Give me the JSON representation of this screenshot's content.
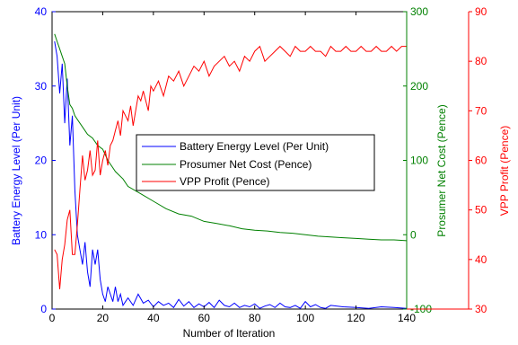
{
  "chart_data": {
    "type": "line",
    "title": "",
    "xlabel": "Number of Iteration",
    "xlim": [
      0,
      140
    ],
    "x_ticks": [
      0,
      20,
      40,
      60,
      80,
      100,
      120,
      140
    ],
    "grid": false,
    "legend_position": "center",
    "axes": [
      {
        "id": "battery",
        "side": "left",
        "label": "Battery Energy Level (Per Unit)",
        "color": "#0000ff",
        "ylim": [
          0,
          40
        ],
        "ticks": [
          0,
          10,
          20,
          30,
          40
        ]
      },
      {
        "id": "cost",
        "side": "right",
        "label": "Prosumer Net Cost (Pence)",
        "color": "#008000",
        "ylim": [
          -100,
          300
        ],
        "ticks": [
          -100,
          0,
          100,
          200,
          300
        ]
      },
      {
        "id": "profit",
        "side": "right-outer",
        "label": "VPP Profit (Pence)",
        "color": "#ff0000",
        "ylim": [
          30,
          90
        ],
        "ticks": [
          30,
          40,
          50,
          60,
          70,
          80,
          90
        ]
      }
    ],
    "series": [
      {
        "name": "Battery Energy Level (Per Unit)",
        "axis": "battery",
        "color": "#0000ff",
        "x": [
          1,
          2,
          3,
          4,
          5,
          6,
          7,
          8,
          9,
          10,
          11,
          12,
          13,
          14,
          15,
          16,
          17,
          18,
          19,
          20,
          21,
          22,
          23,
          24,
          25,
          26,
          27,
          28,
          29,
          30,
          32,
          34,
          36,
          38,
          40,
          42,
          44,
          46,
          48,
          50,
          52,
          54,
          56,
          58,
          60,
          62,
          64,
          66,
          68,
          70,
          72,
          74,
          76,
          78,
          80,
          82,
          84,
          86,
          88,
          90,
          92,
          94,
          96,
          98,
          100,
          102,
          104,
          106,
          108,
          110,
          115,
          120,
          125,
          130,
          135,
          140
        ],
        "y": [
          36,
          34,
          29,
          33,
          25,
          31,
          22,
          26,
          16,
          10,
          8,
          6,
          9,
          5,
          3,
          8,
          6,
          8,
          4,
          2,
          1,
          3,
          2,
          1,
          3,
          1,
          2,
          0.5,
          1,
          1.5,
          0.5,
          2,
          0.8,
          1.2,
          0.3,
          1,
          0.5,
          0.8,
          0.2,
          1.3,
          0.4,
          1,
          0.2,
          0.7,
          0.3,
          0.9,
          0.2,
          1.2,
          0.5,
          0.3,
          0.8,
          0.2,
          0.5,
          0.3,
          0.7,
          0.1,
          0.4,
          0.6,
          0.2,
          0.8,
          0.3,
          0.2,
          0.5,
          0.1,
          1,
          0.3,
          0.6,
          0.2,
          0.1,
          0.5,
          0.3,
          0.2,
          0.1,
          0.3,
          0.2,
          0.1
        ]
      },
      {
        "name": "Prosumer Net Cost (Pence)",
        "axis": "cost",
        "color": "#008000",
        "x": [
          1,
          2,
          3,
          4,
          5,
          6,
          7,
          8,
          9,
          10,
          12,
          14,
          16,
          18,
          20,
          22,
          25,
          28,
          30,
          35,
          40,
          45,
          50,
          55,
          60,
          65,
          70,
          75,
          80,
          85,
          90,
          95,
          100,
          105,
          110,
          115,
          120,
          125,
          130,
          135,
          140
        ],
        "y": [
          270,
          260,
          250,
          240,
          230,
          200,
          175,
          170,
          160,
          155,
          145,
          135,
          130,
          120,
          115,
          100,
          85,
          75,
          65,
          55,
          45,
          35,
          28,
          25,
          18,
          15,
          12,
          8,
          6,
          5,
          3,
          2,
          0,
          -2,
          -3,
          -4,
          -5,
          -6,
          -7,
          -7,
          -8
        ]
      },
      {
        "name": "VPP Profit (Pence)",
        "axis": "profit",
        "color": "#ff0000",
        "x": [
          1,
          2,
          3,
          4,
          5,
          6,
          7,
          8,
          9,
          10,
          11,
          12,
          13,
          14,
          15,
          16,
          17,
          18,
          19,
          20,
          21,
          22,
          23,
          24,
          25,
          26,
          27,
          28,
          29,
          30,
          31,
          32,
          33,
          34,
          35,
          36,
          37,
          38,
          39,
          40,
          42,
          44,
          46,
          48,
          50,
          52,
          54,
          56,
          58,
          60,
          62,
          64,
          66,
          68,
          70,
          72,
          74,
          76,
          78,
          80,
          82,
          84,
          86,
          88,
          90,
          92,
          94,
          96,
          98,
          100,
          102,
          104,
          106,
          108,
          110,
          112,
          114,
          116,
          118,
          120,
          122,
          124,
          126,
          128,
          130,
          132,
          134,
          136,
          138,
          140
        ],
        "y": [
          42,
          41,
          34,
          40,
          43,
          48,
          50,
          41,
          41,
          47,
          54,
          61,
          56,
          58,
          62,
          57,
          58,
          64,
          57,
          60,
          62,
          59,
          63,
          64,
          66,
          68,
          65,
          70,
          69,
          68,
          71,
          67,
          70,
          73,
          72,
          74,
          72,
          70,
          75,
          74,
          76,
          73,
          77,
          76,
          78,
          75,
          77,
          79,
          78,
          80,
          77,
          79,
          80,
          81,
          79,
          80,
          78,
          81,
          80,
          82,
          83,
          80,
          81,
          82,
          83,
          82,
          81,
          83,
          82,
          82,
          83,
          82,
          82,
          81,
          83,
          82,
          82,
          83,
          82,
          82,
          83,
          82,
          82,
          83,
          82,
          82,
          83,
          82,
          83,
          83
        ]
      }
    ]
  }
}
